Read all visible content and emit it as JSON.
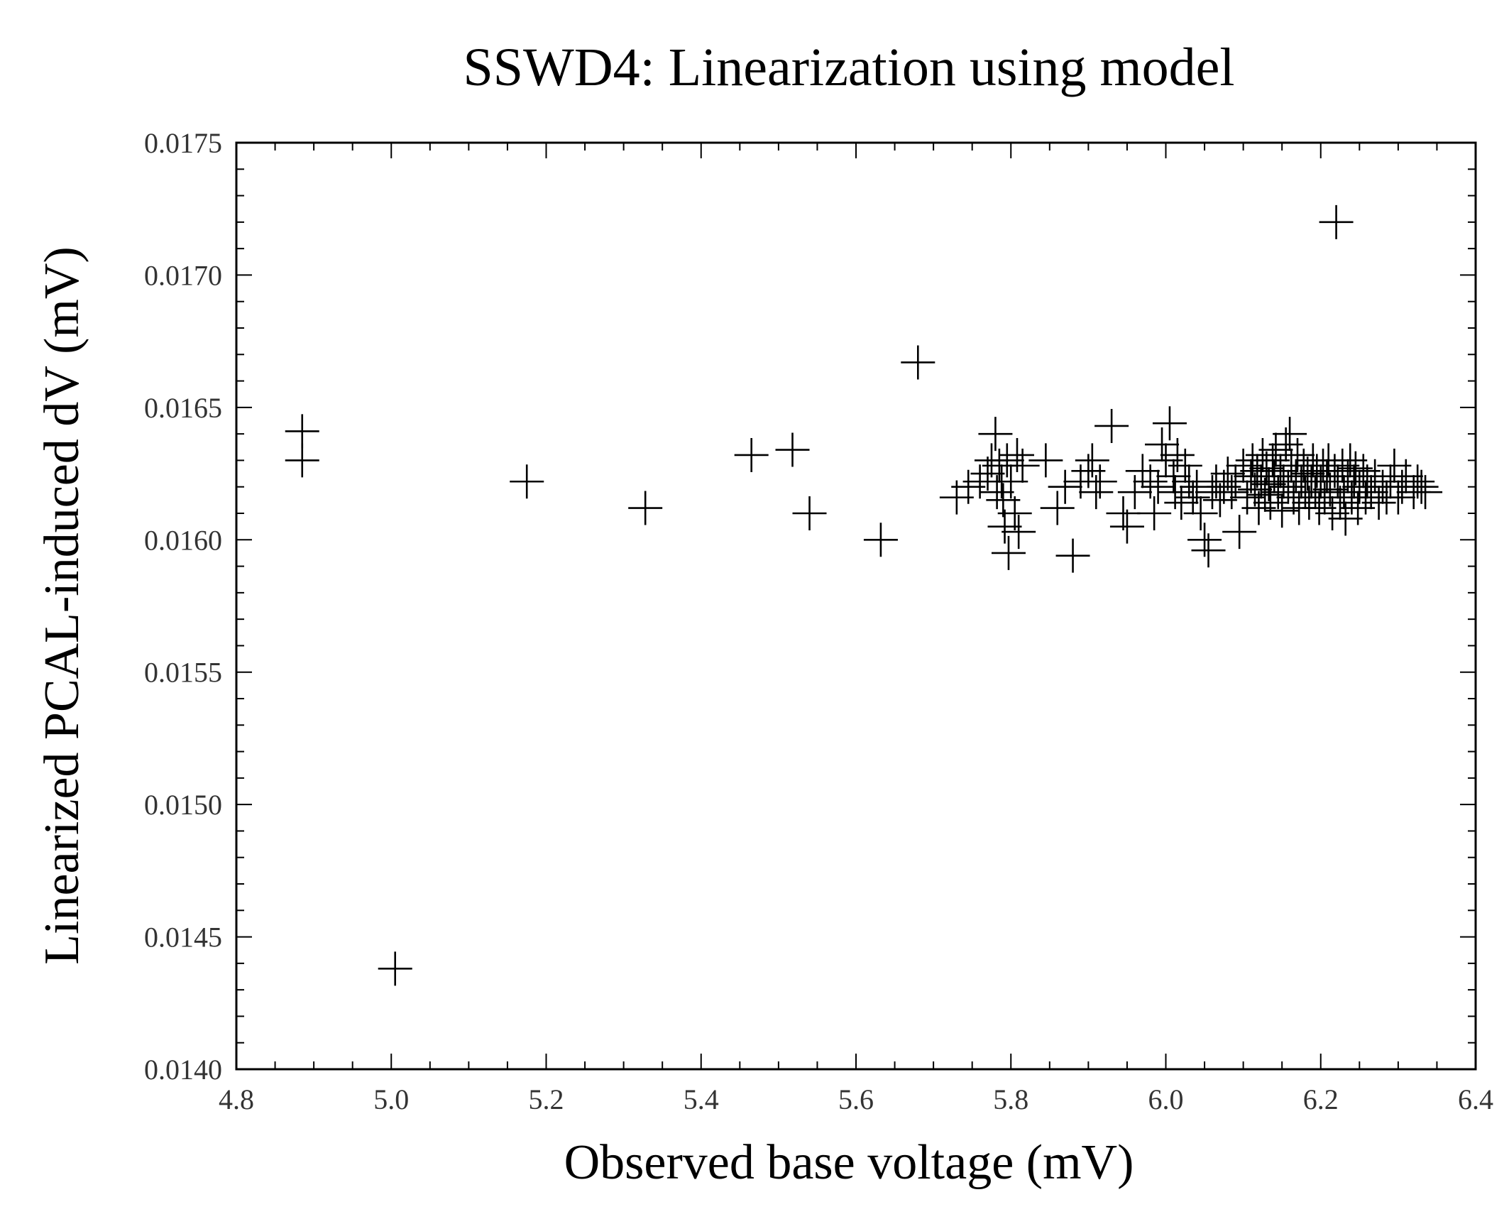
{
  "chart_data": {
    "type": "scatter",
    "title": "SSWD4: Linearization using model",
    "xlabel": "Observed base voltage (mV)",
    "ylabel": "Linearized PCAL-induced dV (mV)",
    "xlim": [
      4.8,
      6.4
    ],
    "ylim": [
      0.014,
      0.0175
    ],
    "x_ticks": [
      "4.8",
      "5.0",
      "5.2",
      "5.4",
      "5.6",
      "5.8",
      "6.0",
      "6.2",
      "6.4"
    ],
    "y_ticks": [
      "0.0140",
      "0.0145",
      "0.0150",
      "0.0155",
      "0.0160",
      "0.0165",
      "0.0170",
      "0.0175"
    ],
    "grid": false,
    "marker": "plus",
    "color": "#000000",
    "series": [
      {
        "points": [
          [
            4.885,
            0.01641
          ],
          [
            4.885,
            0.0163
          ],
          [
            5.005,
            0.01438
          ],
          [
            5.175,
            0.01622
          ],
          [
            5.328,
            0.01612
          ],
          [
            5.465,
            0.01632
          ],
          [
            5.518,
            0.01634
          ],
          [
            5.54,
            0.0161
          ],
          [
            5.632,
            0.016
          ],
          [
            5.68,
            0.01667
          ],
          [
            5.73,
            0.01616
          ],
          [
            5.745,
            0.0162
          ],
          [
            5.76,
            0.01622
          ],
          [
            5.77,
            0.01625
          ],
          [
            5.775,
            0.0163
          ],
          [
            5.78,
            0.0164
          ],
          [
            5.782,
            0.01618
          ],
          [
            5.785,
            0.01628
          ],
          [
            5.788,
            0.01622
          ],
          [
            5.79,
            0.01615
          ],
          [
            5.792,
            0.01605
          ],
          [
            5.795,
            0.0163
          ],
          [
            5.797,
            0.01595
          ],
          [
            5.8,
            0.01622
          ],
          [
            5.805,
            0.0161
          ],
          [
            5.808,
            0.01632
          ],
          [
            5.81,
            0.01603
          ],
          [
            5.815,
            0.01628
          ],
          [
            5.845,
            0.0163
          ],
          [
            5.86,
            0.01612
          ],
          [
            5.87,
            0.0162
          ],
          [
            5.88,
            0.01594
          ],
          [
            5.89,
            0.01622
          ],
          [
            5.9,
            0.01626
          ],
          [
            5.905,
            0.0163
          ],
          [
            5.91,
            0.01618
          ],
          [
            5.915,
            0.01622
          ],
          [
            5.93,
            0.01643
          ],
          [
            5.945,
            0.0161
          ],
          [
            5.95,
            0.01605
          ],
          [
            5.96,
            0.01618
          ],
          [
            5.97,
            0.01626
          ],
          [
            5.98,
            0.01622
          ],
          [
            5.985,
            0.0161
          ],
          [
            5.99,
            0.0162
          ],
          [
            5.995,
            0.01636
          ],
          [
            6.0,
            0.0163
          ],
          [
            6.005,
            0.01644
          ],
          [
            6.01,
            0.01624
          ],
          [
            6.012,
            0.01618
          ],
          [
            6.015,
            0.01632
          ],
          [
            6.02,
            0.01614
          ],
          [
            6.025,
            0.01628
          ],
          [
            6.03,
            0.01622
          ],
          [
            6.035,
            0.01616
          ],
          [
            6.04,
            0.0162
          ],
          [
            6.045,
            0.0161
          ],
          [
            6.05,
            0.016
          ],
          [
            6.055,
            0.01596
          ],
          [
            6.06,
            0.01618
          ],
          [
            6.065,
            0.01622
          ],
          [
            6.07,
            0.01615
          ],
          [
            6.075,
            0.0162
          ],
          [
            6.08,
            0.01625
          ],
          [
            6.085,
            0.01618
          ],
          [
            6.09,
            0.01622
          ],
          [
            6.095,
            0.01603
          ],
          [
            6.1,
            0.01628
          ],
          [
            6.105,
            0.01616
          ],
          [
            6.11,
            0.01624
          ],
          [
            6.112,
            0.0163
          ],
          [
            6.115,
            0.01619
          ],
          [
            6.118,
            0.01626
          ],
          [
            6.12,
            0.01612
          ],
          [
            6.123,
            0.01622
          ],
          [
            6.125,
            0.01632
          ],
          [
            6.128,
            0.01617
          ],
          [
            6.13,
            0.01627
          ],
          [
            6.133,
            0.01621
          ],
          [
            6.135,
            0.01614
          ],
          [
            6.138,
            0.0163
          ],
          [
            6.14,
            0.01624
          ],
          [
            6.142,
            0.01634
          ],
          [
            6.145,
            0.01618
          ],
          [
            6.148,
            0.01626
          ],
          [
            6.15,
            0.01611
          ],
          [
            6.152,
            0.01622
          ],
          [
            6.155,
            0.01636
          ],
          [
            6.158,
            0.0162
          ],
          [
            6.16,
            0.0164
          ],
          [
            6.162,
            0.01628
          ],
          [
            6.165,
            0.01616
          ],
          [
            6.168,
            0.01624
          ],
          [
            6.17,
            0.01632
          ],
          [
            6.172,
            0.01612
          ],
          [
            6.175,
            0.01622
          ],
          [
            6.178,
            0.01628
          ],
          [
            6.18,
            0.01618
          ],
          [
            6.183,
            0.01625
          ],
          [
            6.185,
            0.01614
          ],
          [
            6.188,
            0.01622
          ],
          [
            6.19,
            0.0163
          ],
          [
            6.193,
            0.01618
          ],
          [
            6.195,
            0.01626
          ],
          [
            6.198,
            0.01612
          ],
          [
            6.2,
            0.01622
          ],
          [
            6.203,
            0.01628
          ],
          [
            6.205,
            0.01616
          ],
          [
            6.208,
            0.01624
          ],
          [
            6.21,
            0.0163
          ],
          [
            6.212,
            0.01619
          ],
          [
            6.215,
            0.0161
          ],
          [
            6.218,
            0.01626
          ],
          [
            6.22,
            0.0172
          ],
          [
            6.222,
            0.01622
          ],
          [
            6.225,
            0.01614
          ],
          [
            6.228,
            0.01628
          ],
          [
            6.23,
            0.01618
          ],
          [
            6.232,
            0.01608
          ],
          [
            6.235,
            0.01624
          ],
          [
            6.238,
            0.0163
          ],
          [
            6.24,
            0.01616
          ],
          [
            6.243,
            0.01622
          ],
          [
            6.245,
            0.01627
          ],
          [
            6.248,
            0.01612
          ],
          [
            6.25,
            0.0162
          ],
          [
            6.255,
            0.01626
          ],
          [
            6.258,
            0.01616
          ],
          [
            6.26,
            0.01622
          ],
          [
            6.265,
            0.01618
          ],
          [
            6.27,
            0.01624
          ],
          [
            6.275,
            0.01614
          ],
          [
            6.28,
            0.0162
          ],
          [
            6.285,
            0.01616
          ],
          [
            6.29,
            0.01622
          ],
          [
            6.295,
            0.01628
          ],
          [
            6.3,
            0.01616
          ],
          [
            6.305,
            0.0162
          ],
          [
            6.31,
            0.01624
          ],
          [
            6.32,
            0.01618
          ],
          [
            6.325,
            0.01622
          ],
          [
            6.33,
            0.0162
          ],
          [
            6.335,
            0.01618
          ]
        ]
      }
    ]
  }
}
